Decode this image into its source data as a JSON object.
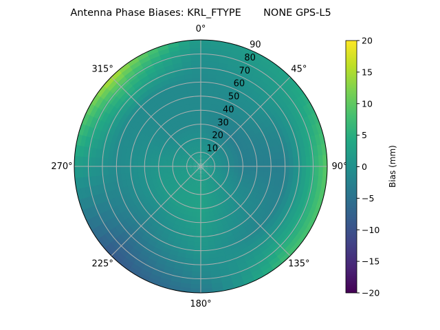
{
  "chart_data": {
    "type": "heatmap",
    "projection": "polar",
    "title": "Antenna Phase Biases: KRL_FTYPE       NONE GPS-L5",
    "colormap": "viridis",
    "colorbar": {
      "label": "Bias (mm)",
      "range": [
        -20,
        20
      ],
      "ticks": [
        "20",
        "15",
        "10",
        "5",
        "0",
        "−5",
        "−10",
        "−15",
        "−20"
      ]
    },
    "angular_axis": {
      "direction": "clockwise",
      "zero_location": "north",
      "tick_labels": [
        "0°",
        "45°",
        "90°",
        "135°",
        "180°",
        "225°",
        "270°",
        "315°"
      ]
    },
    "radial_axis": {
      "range": [
        0,
        90
      ],
      "tick_labels": [
        "10",
        "20",
        "30",
        "40",
        "50",
        "60",
        "70",
        "80",
        "90"
      ]
    },
    "grid": true,
    "azimuths_deg": [
      0,
      45,
      90,
      135,
      180,
      225,
      270,
      315
    ],
    "zeniths_deg": [
      0,
      30,
      60,
      80,
      90
    ],
    "bias_mm": [
      [
        2,
        -1,
        -1,
        0,
        1
      ],
      [
        2,
        -3,
        0,
        2,
        3
      ],
      [
        2,
        -3,
        -3,
        5,
        10
      ],
      [
        2,
        0,
        -2,
        4,
        8
      ],
      [
        2,
        3,
        1,
        -2,
        -4
      ],
      [
        2,
        2,
        -3,
        -7,
        -9
      ],
      [
        2,
        1,
        -1,
        1,
        2
      ],
      [
        2,
        -1,
        -1,
        8,
        16
      ]
    ]
  }
}
